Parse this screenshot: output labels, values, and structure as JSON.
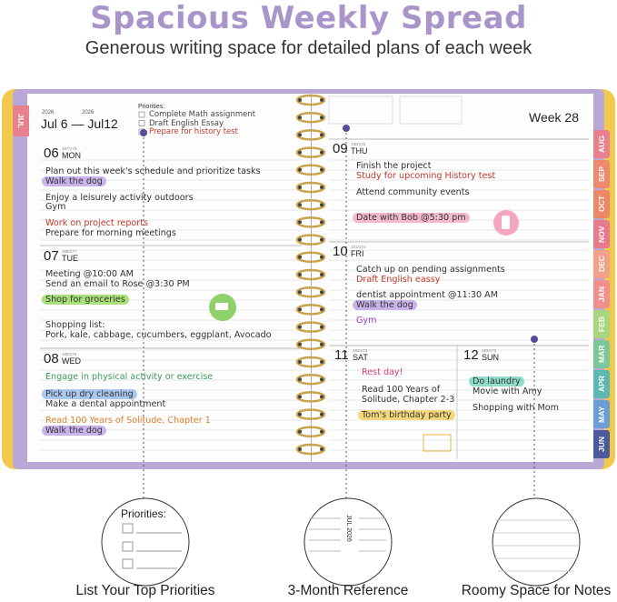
{
  "header": {
    "title": "Spacious Weekly Spread",
    "subtitle": "Generous writing space for detailed plans of each week"
  },
  "planner": {
    "left_tab": "JUL",
    "year_start": "2026",
    "year_end": "2026",
    "date_range": "Jul 6 — Jul12",
    "priorities": {
      "label": "Priorities:",
      "items": [
        {
          "text": "Complete Math assignment",
          "color": "#444444"
        },
        {
          "text": "Draft English Essay",
          "color": "#444444"
        },
        {
          "text": "Prepare for history test",
          "color": "#c0392b"
        }
      ]
    },
    "week": "Week 28",
    "month_tabs": [
      {
        "label": "AUG",
        "color": "#e8808e"
      },
      {
        "label": "SEP",
        "color": "#ef8a6f"
      },
      {
        "label": "OCT",
        "color": "#ee8668"
      },
      {
        "label": "NOV",
        "color": "#e9798d"
      },
      {
        "label": "DEC",
        "color": "#f1a08a"
      },
      {
        "label": "JAN",
        "color": "#f08f8c"
      },
      {
        "label": "FEB",
        "color": "#a7d680"
      },
      {
        "label": "MAR",
        "color": "#7cc79a"
      },
      {
        "label": "APR",
        "color": "#5db7b3"
      },
      {
        "label": "MAY",
        "color": "#6a9fd6"
      },
      {
        "label": "JUN",
        "color": "#4b5a9b"
      }
    ],
    "days": [
      {
        "number": "06",
        "weekday": "MON",
        "count": "187/178",
        "entries": [
          {
            "text": "Plan out this week's schedule and prioritize tasks",
            "color": "#333333"
          },
          {
            "text": "Walk the dog",
            "color": "#333333",
            "highlight": "#c9b3ea"
          },
          {
            "text": "Enjoy a leisurely activity outdoors",
            "color": "#333333"
          },
          {
            "text": "Gym",
            "color": "#333333"
          },
          {
            "text": "Work on project reports",
            "color": "#c0392b"
          },
          {
            "text": "Prepare for morning meetings",
            "color": "#333333"
          }
        ]
      },
      {
        "number": "07",
        "weekday": "TUE",
        "count": "188/177",
        "entries": [
          {
            "text": "Meeting @10:00 AM",
            "color": "#333333"
          },
          {
            "text": "Send an email to Rose @3:30 PM",
            "color": "#333333"
          },
          {
            "text": "Shop for groceries",
            "color": "#333333",
            "highlight": "#a8e07a"
          },
          {
            "text": "Shopping list:",
            "color": "#333333"
          },
          {
            "text": "Pork, kale, cabbage, cucumbers, eggplant, Avocado",
            "color": "#333333"
          }
        ]
      },
      {
        "number": "08",
        "weekday": "WED",
        "count": "189/176",
        "entries": [
          {
            "text": "Engage in physical activity or exercise",
            "color": "#3a9a5b"
          },
          {
            "text": "Pick up dry cleaning",
            "color": "#333333",
            "highlight": "#a9c8ef"
          },
          {
            "text": "Make a dental appointment",
            "color": "#333333"
          },
          {
            "text": "Read 100 Years of Solitude, Chapter 1",
            "color": "#d9822b"
          },
          {
            "text": "Walk the dog",
            "color": "#333333",
            "highlight": "#c9b3ea"
          }
        ]
      },
      {
        "number": "09",
        "weekday": "THU",
        "count": "190/175",
        "entries": [
          {
            "text": "Finish the project",
            "color": "#333333"
          },
          {
            "text": "Study for upcoming History test",
            "color": "#c0392b"
          },
          {
            "text": "Attend community events",
            "color": "#333333"
          },
          {
            "text": "Date with Bob @5:30 pm",
            "color": "#333333",
            "highlight": "#f4b8cf"
          }
        ]
      },
      {
        "number": "10",
        "weekday": "FRI",
        "count": "191/174",
        "entries": [
          {
            "text": "Catch up on pending assignments",
            "color": "#333333"
          },
          {
            "text": "Draft English eassy",
            "color": "#c0392b"
          },
          {
            "text": "dentist appointment @11:30 AM",
            "color": "#333333"
          },
          {
            "text": "Walk the dog",
            "color": "#333333",
            "highlight": "#c9b3ea"
          },
          {
            "text": "Gym",
            "color": "#9b3fb5"
          }
        ]
      },
      {
        "number": "11",
        "weekday": "SAT",
        "count": "192/173",
        "entries": [
          {
            "text": "Rest day!",
            "color": "#d0417a"
          },
          {
            "text": "Read 100 Years of",
            "color": "#333333"
          },
          {
            "text": "Solitude, Chapter 2-3",
            "color": "#333333"
          },
          {
            "text": "Tom's birthday party",
            "color": "#333333",
            "highlight": "#f4d77a"
          }
        ]
      },
      {
        "number": "12",
        "weekday": "SUN",
        "count": "193/172",
        "entries": [
          {
            "text": "Do laundry",
            "color": "#333333",
            "highlight": "#8fdccb"
          },
          {
            "text": "Movie with Amy",
            "color": "#333333"
          },
          {
            "text": "Shopping with Mom",
            "color": "#333333"
          }
        ]
      }
    ]
  },
  "zoom": {
    "priorities_label": "Priorities:",
    "calendar_label": "JUL 2026"
  },
  "callouts": [
    {
      "label": "List Your Top Priorities"
    },
    {
      "label": "3-Month Reference"
    },
    {
      "label": "Roomy Space for Notes"
    }
  ]
}
